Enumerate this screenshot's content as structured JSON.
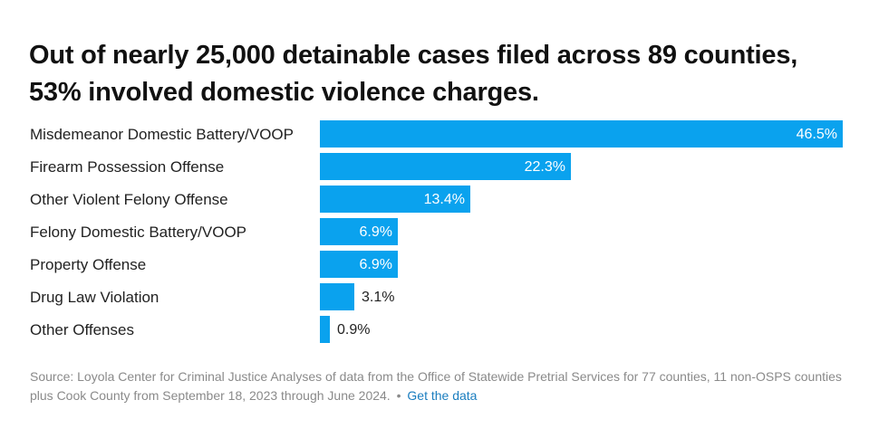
{
  "title": "Out of nearly 25,000 detainable cases filed across 89 counties, 53% involved domestic violence charges.",
  "colors": {
    "bar": "#0aa2ee",
    "value_inside": "#ffffff",
    "value_outside": "#222222",
    "source_text": "#8a8a8a",
    "link": "#1a7dbf"
  },
  "chart_data": {
    "type": "bar",
    "orientation": "horizontal",
    "categories": [
      "Misdemeanor Domestic Battery/VOOP",
      "Firearm Possession Offense",
      "Other Violent Felony Offense",
      "Felony Domestic Battery/VOOP",
      "Property Offense",
      "Drug Law Violation",
      "Other Offenses"
    ],
    "values": [
      46.5,
      22.3,
      13.4,
      6.9,
      6.9,
      3.1,
      0.9
    ],
    "value_labels": [
      "46.5%",
      "22.3%",
      "13.4%",
      "6.9%",
      "6.9%",
      "3.1%",
      "0.9%"
    ],
    "unit": "%",
    "xlim": [
      0,
      46.5
    ],
    "grid": false,
    "legend": "none"
  },
  "source": {
    "text": "Source: Loyola Center for Criminal Justice Analyses of data from the Office of Statewide Pretrial Services for 77 counties, 11 non-OSPS counties plus Cook County from September 18, 2023 through June 2024.",
    "separator": "•",
    "link_label": "Get the data"
  }
}
